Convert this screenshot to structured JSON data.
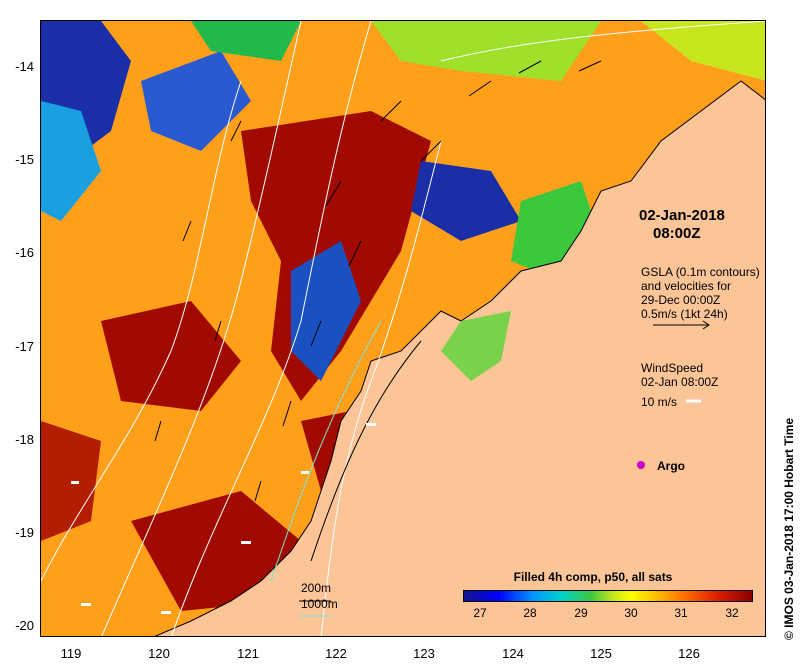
{
  "map": {
    "datetime_line1": "02-Jan-2018",
    "datetime_line2": "08:00Z",
    "gsla_line1": "GSLA (0.1m contours)",
    "gsla_line2": "and velocities for",
    "gsla_line3": "29-Dec 00:00Z",
    "gsla_line4": "0.5m/s (1kt 24h)",
    "wind_line1": "WindSpeed",
    "wind_line2": "02-Jan 08:00Z",
    "wind_line3": "10 m/s",
    "argo_label": "Argo",
    "depth_200": "200m",
    "depth_1000": "1000m",
    "credit": "© IMOS 03-Jan-2018 17:00 Hobart Time"
  },
  "axes": {
    "y_ticks": [
      "-14",
      "-15",
      "-16",
      "-17",
      "-18",
      "-19",
      "-20"
    ],
    "x_ticks": [
      "119",
      "120",
      "121",
      "122",
      "123",
      "124",
      "125",
      "126"
    ]
  },
  "colorbar": {
    "title": "Filled 4h comp, p50, all sats",
    "ticks": [
      "27",
      "28",
      "29",
      "30",
      "31",
      "32"
    ]
  },
  "colors": {
    "land": "#fbc598",
    "sst_low": "#14148c",
    "sst_high": "#8c0000",
    "argo_marker": "#cc00cc",
    "wind_arrow": "#ffffff"
  }
}
